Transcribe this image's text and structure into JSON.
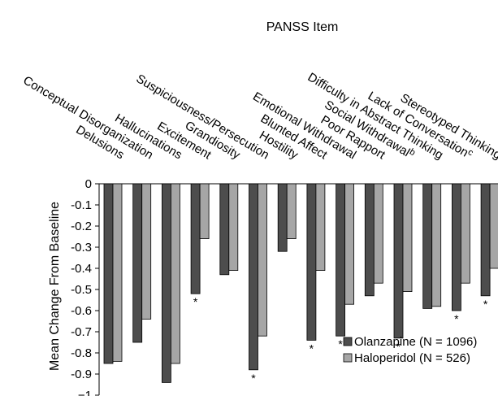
{
  "chart_data": {
    "type": "bar",
    "title": "PANSS Item",
    "xlabel": "",
    "ylabel": "Mean Change From Baseline",
    "ylim": [
      -1,
      0
    ],
    "yticks": [
      "0",
      "-0.1",
      "-0.2",
      "-0.3",
      "-0.4",
      "-0.5",
      "-0.6",
      "-0.7",
      "-0.8",
      "-0.9",
      "−1"
    ],
    "categories": [
      "Delusions",
      "Conceptual Disorganization",
      "Hallucinations",
      "Excitement",
      "Grandiosity",
      "Suspiciousness/Persecution",
      "Hostility",
      "Blunted Affect",
      "Emotional Withdrawal",
      "Poor Rapport",
      "Social Withdrawal",
      "Difficulty in Abstract Thinking",
      "Lack of Conversation",
      "Stereotyped Thinking"
    ],
    "footnote_marks": [
      "",
      "",
      "",
      "",
      "",
      "",
      "",
      "",
      "",
      "",
      "b",
      "",
      "c",
      ""
    ],
    "series": [
      {
        "name": "Olanzapine (N = 1096)",
        "color": "#4d4d4d",
        "values": [
          -0.85,
          -0.75,
          -0.94,
          -0.52,
          -0.43,
          -0.88,
          -0.32,
          -0.74,
          -0.72,
          -0.53,
          -0.73,
          -0.59,
          -0.6,
          -0.53
        ]
      },
      {
        "name": "Haloperidol (N = 526)",
        "color": "#a6a6a6",
        "values": [
          -0.84,
          -0.64,
          -0.85,
          -0.26,
          -0.41,
          -0.72,
          -0.26,
          -0.41,
          -0.57,
          -0.47,
          -0.51,
          -0.58,
          -0.47,
          -0.4
        ]
      }
    ],
    "significance_marker": "*",
    "significant": [
      false,
      false,
      false,
      true,
      false,
      true,
      false,
      true,
      true,
      false,
      true,
      false,
      true,
      true
    ],
    "legend_position": "bottom-right",
    "grid": false
  }
}
